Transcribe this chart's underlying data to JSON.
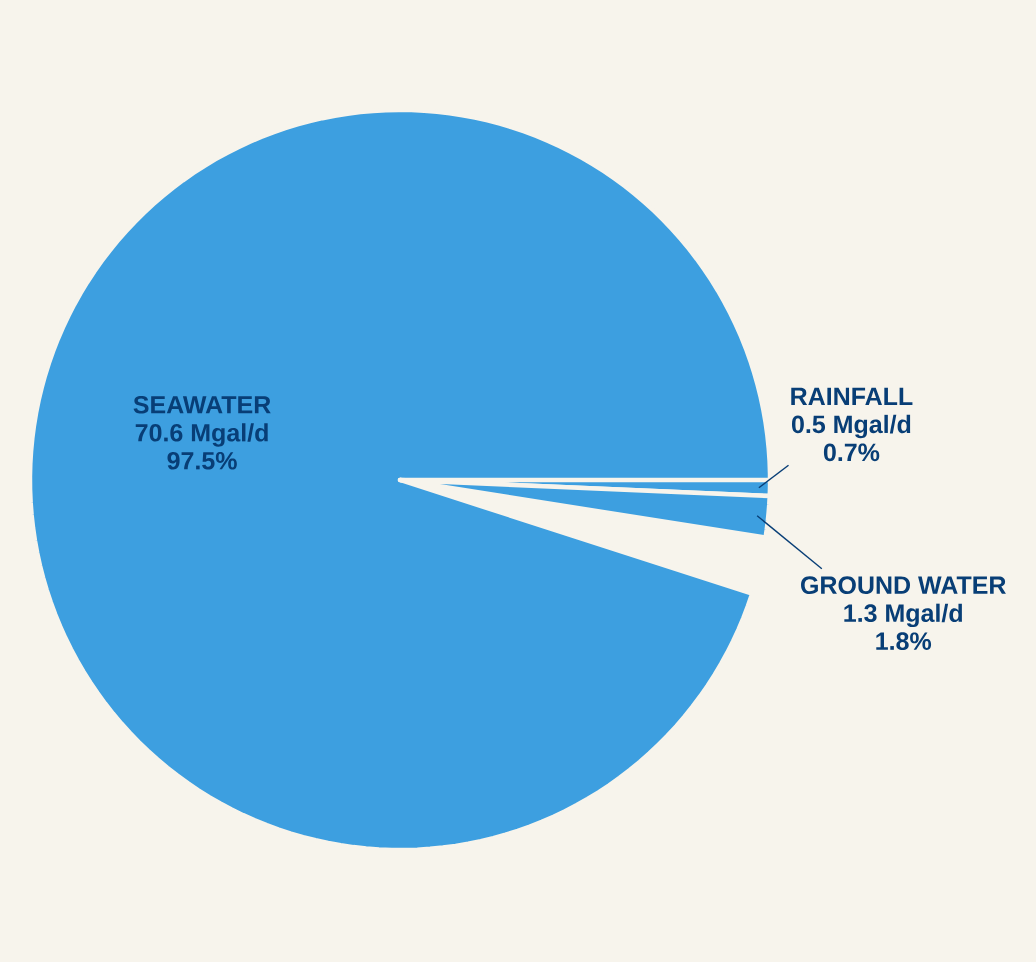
{
  "chart_data": {
    "type": "pie",
    "categories": [
      "SEAWATER",
      "RAINFALL",
      "GROUND WATER"
    ],
    "values": [
      70.6,
      0.5,
      1.3
    ],
    "value_labels": [
      "70.6 Mgal/d",
      "0.5 Mgal/d",
      "1.3 Mgal/d"
    ],
    "colors": [
      "#3d9fe0",
      "#3d9fe0",
      "#3d9fe0"
    ],
    "annotations": [
      {
        "text": "97.5%",
        "x": "SEAWATER"
      },
      {
        "text": "0.7%",
        "x": "RAINFALL"
      },
      {
        "text": "1.8%",
        "x": "GROUND WATER"
      }
    ]
  }
}
